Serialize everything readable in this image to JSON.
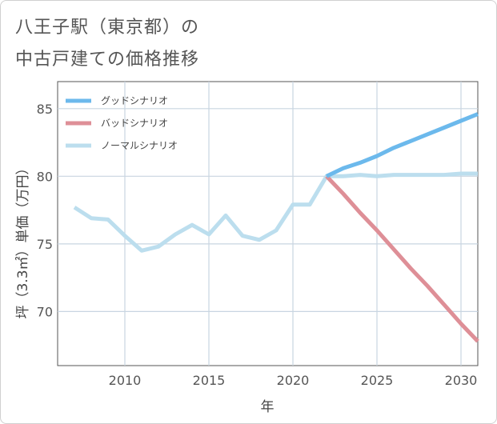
{
  "title_lines": [
    "八王子駅（東京都）の",
    "中古戸建ての価格推移"
  ],
  "chart_data": {
    "type": "line",
    "title": "八王子駅（東京都）の中古戸建ての価格推移",
    "xlabel": "年",
    "ylabel": "坪（3.3㎡）単価（万円）",
    "xlim": [
      2006,
      2031
    ],
    "ylim": [
      66,
      87
    ],
    "xticks": [
      2010,
      2015,
      2020,
      2025,
      2030
    ],
    "yticks": [
      70,
      75,
      80,
      85
    ],
    "grid": true,
    "legend_position": "top-left",
    "series": [
      {
        "name": "グッドシナリオ",
        "color": "#6cb9ec",
        "x": [
          2022,
          2023,
          2024,
          2025,
          2026,
          2027,
          2028,
          2029,
          2030,
          2031
        ],
        "y": [
          80.0,
          80.6,
          81.0,
          81.5,
          82.1,
          82.6,
          83.1,
          83.6,
          84.1,
          84.6
        ]
      },
      {
        "name": "バッドシナリオ",
        "color": "#de8f97",
        "x": [
          2022,
          2023,
          2024,
          2025,
          2026,
          2027,
          2028,
          2029,
          2030,
          2031
        ],
        "y": [
          80.0,
          78.7,
          77.3,
          76.0,
          74.6,
          73.2,
          71.9,
          70.5,
          69.1,
          67.8
        ]
      },
      {
        "name": "ノーマルシナリオ",
        "color": "#bcdeee",
        "x": [
          2007,
          2008,
          2009,
          2010,
          2011,
          2012,
          2013,
          2014,
          2015,
          2016,
          2017,
          2018,
          2019,
          2020,
          2021,
          2022,
          2023,
          2024,
          2025,
          2026,
          2027,
          2028,
          2029,
          2030,
          2031
        ],
        "y": [
          77.7,
          76.9,
          76.8,
          75.6,
          74.5,
          74.8,
          75.7,
          76.4,
          75.7,
          77.1,
          75.6,
          75.3,
          76.0,
          77.9,
          77.9,
          80.0,
          80.0,
          80.1,
          80.0,
          80.1,
          80.1,
          80.1,
          80.1,
          80.2,
          80.2
        ]
      }
    ]
  }
}
